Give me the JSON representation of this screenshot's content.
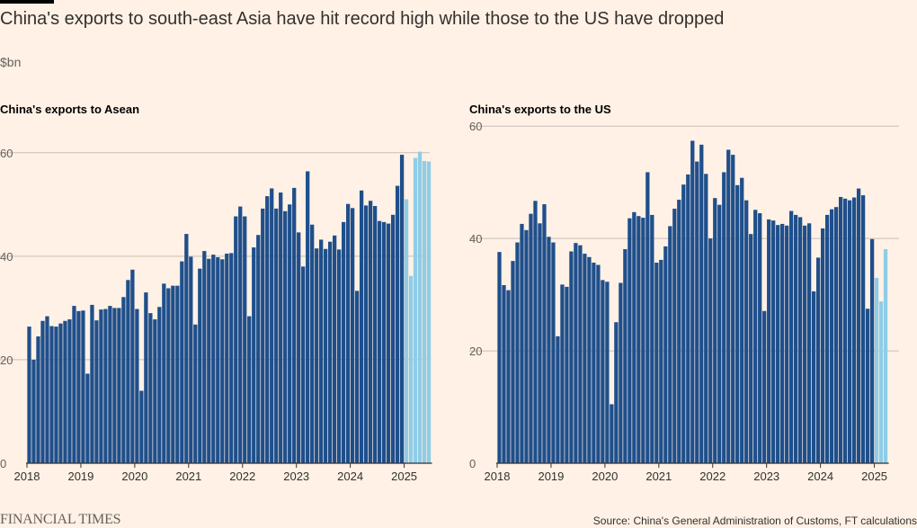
{
  "header": {
    "title": "China's exports to south-east Asia have hit record high while those to the US have dropped",
    "unit": "$bn"
  },
  "footer": {
    "source": "Source: China's General Administration of Customs, FT calculations",
    "logo": "FINANCIAL TIMES"
  },
  "colors": {
    "historical": "#1f4f8b",
    "latest": "#8fcde6",
    "grid": "#c8beb6",
    "axis": "#33302e"
  },
  "chart_data": [
    {
      "type": "bar",
      "title": "China's exports to Asean",
      "xlabel": "",
      "ylabel": "",
      "ylim": [
        0,
        61
      ],
      "yticks": [
        0,
        20,
        40,
        60
      ],
      "xtick_labels": [
        "2018",
        "2019",
        "2020",
        "2021",
        "2022",
        "2023",
        "2024",
        "2025"
      ],
      "start": "2018-01",
      "highlight_from": "2025-01",
      "values": [
        26.4,
        20.0,
        24.5,
        27.5,
        28.4,
        26.5,
        26.4,
        27.0,
        27.5,
        27.8,
        30.4,
        29.4,
        29.5,
        17.3,
        30.6,
        27.6,
        29.7,
        29.8,
        30.4,
        30.0,
        30.0,
        32.1,
        35.4,
        37.4,
        29.8,
        14.0,
        33.0,
        29.0,
        27.8,
        30.2,
        34.7,
        33.8,
        34.3,
        34.3,
        39.0,
        44.3,
        39.9,
        26.8,
        37.6,
        41.0,
        39.5,
        40.3,
        39.8,
        39.4,
        40.5,
        40.6,
        47.7,
        49.6,
        47.7,
        28.4,
        41.7,
        44.1,
        49.2,
        51.6,
        53.1,
        49.2,
        52.3,
        48.7,
        50.0,
        53.2,
        44.6,
        38.0,
        56.4,
        46.1,
        41.5,
        43.2,
        41.4,
        42.8,
        44.0,
        41.3,
        46.6,
        50.1,
        49.3,
        33.3,
        52.7,
        49.8,
        50.7,
        49.7,
        46.8,
        46.6,
        46.3,
        48.0,
        53.6,
        59.6,
        51.0,
        36.2,
        59.0,
        60.2,
        58.4,
        58.3
      ]
    },
    {
      "type": "bar",
      "title": "China's exports to the US",
      "xlabel": "",
      "ylabel": "",
      "ylim": [
        0,
        61
      ],
      "yticks": [
        0,
        20,
        40,
        60
      ],
      "xtick_labels": [
        "2018",
        "2019",
        "2020",
        "2021",
        "2022",
        "2023",
        "2024",
        "2025"
      ],
      "start": "2018-01",
      "highlight_from": "2025-01",
      "values": [
        37.6,
        31.7,
        30.8,
        36.0,
        39.3,
        42.6,
        41.5,
        44.4,
        46.7,
        42.7,
        46.1,
        40.3,
        39.3,
        22.6,
        31.8,
        31.4,
        37.7,
        39.2,
        38.8,
        37.3,
        36.7,
        35.7,
        35.3,
        32.6,
        32.3,
        10.5,
        25.1,
        32.1,
        38.1,
        43.6,
        44.7,
        44.0,
        43.7,
        51.8,
        44.2,
        35.7,
        36.2,
        38.6,
        42.2,
        45.3,
        46.9,
        49.6,
        51.4,
        57.4,
        53.7,
        56.7,
        51.5,
        40.0,
        47.2,
        46.0,
        51.8,
        55.8,
        54.9,
        49.5,
        50.8,
        46.8,
        40.8,
        45.1,
        44.5,
        27.1,
        43.4,
        43.2,
        42.4,
        42.6,
        42.3,
        44.9,
        44.2,
        43.8,
        42.3,
        42.7,
        30.6,
        36.6,
        41.8,
        44.2,
        45.2,
        45.6,
        47.4,
        47.1,
        46.8,
        47.3,
        48.9,
        47.7,
        27.5,
        39.9,
        33.0,
        28.8,
        38.1
      ]
    }
  ]
}
